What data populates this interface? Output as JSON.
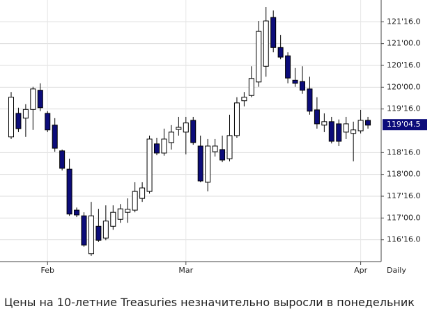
{
  "chart_data": {
    "type": "candlestick",
    "x_label": "Daily",
    "categories": [
      null,
      null,
      null,
      null,
      null,
      "Feb",
      null,
      null,
      null,
      null,
      null,
      null,
      null,
      null,
      null,
      null,
      null,
      null,
      null,
      null,
      null,
      null,
      null,
      null,
      "Mar",
      null,
      null,
      null,
      null,
      null,
      null,
      null,
      null,
      null,
      null,
      null,
      null,
      null,
      null,
      null,
      null,
      null,
      null,
      null,
      null,
      null,
      null,
      null,
      "Apr",
      null
    ],
    "open": [
      118.86,
      119.4,
      119.29,
      119.49,
      119.93,
      119.4,
      119.13,
      118.54,
      118.12,
      117.18,
      117.05,
      116.18,
      116.81,
      116.54,
      116.81,
      116.97,
      117.13,
      117.18,
      117.45,
      117.61,
      118.7,
      118.49,
      118.73,
      119.03,
      118.97,
      119.24,
      118.65,
      117.82,
      118.52,
      118.57,
      118.36,
      118.89,
      119.69,
      119.81,
      120.12,
      120.48,
      121.6,
      120.91,
      120.72,
      120.16,
      120.13,
      119.96,
      119.48,
      119.13,
      119.21,
      119.16,
      118.97,
      118.94,
      119.0,
      119.24
    ],
    "high": [
      119.89,
      119.53,
      119.61,
      120.01,
      120.09,
      119.45,
      119.29,
      118.57,
      118.36,
      117.24,
      117.13,
      117.37,
      117.21,
      117.29,
      117.29,
      117.32,
      117.45,
      117.82,
      117.82,
      118.89,
      118.84,
      119.05,
      119.13,
      119.32,
      119.32,
      119.32,
      118.89,
      118.81,
      118.81,
      118.89,
      119.37,
      119.77,
      119.89,
      120.48,
      121.52,
      121.84,
      121.76,
      121.2,
      120.8,
      120.44,
      120.48,
      120.24,
      119.77,
      119.4,
      119.32,
      119.26,
      119.32,
      119.21,
      119.48,
      119.32
    ],
    "low": [
      118.81,
      118.97,
      118.86,
      119.02,
      119.45,
      118.97,
      118.52,
      118.09,
      117.05,
      117.02,
      116.34,
      116.13,
      116.45,
      116.49,
      116.73,
      116.89,
      116.89,
      117.13,
      117.37,
      117.56,
      118.44,
      118.43,
      118.57,
      118.89,
      118.46,
      118.68,
      117.82,
      117.61,
      118.41,
      118.28,
      118.3,
      118.84,
      119.56,
      119.77,
      120.01,
      120.24,
      120.8,
      120.64,
      120.09,
      120.01,
      119.85,
      119.37,
      119.05,
      118.97,
      118.71,
      118.65,
      118.81,
      118.3,
      118.94,
      119.05
    ],
    "close": [
      119.77,
      119.05,
      119.49,
      119.96,
      119.53,
      119.02,
      118.6,
      118.14,
      117.09,
      117.07,
      116.38,
      117.05,
      116.49,
      116.93,
      117.13,
      117.21,
      117.2,
      117.61,
      117.69,
      118.81,
      118.49,
      118.81,
      118.97,
      119.08,
      119.18,
      118.73,
      117.85,
      118.65,
      118.65,
      118.33,
      118.89,
      119.64,
      119.77,
      120.2,
      121.28,
      121.52,
      120.91,
      120.69,
      120.21,
      120.09,
      119.93,
      119.45,
      119.16,
      119.21,
      118.76,
      118.76,
      119.16,
      119.02,
      119.24,
      119.13
    ],
    "up_color": "#ffffff",
    "down_color": "#0c0c7a",
    "ylim": [
      116,
      122
    ],
    "yticks": [
      {
        "value": 116.5,
        "label": "116'16.0"
      },
      {
        "value": 117,
        "label": "117'00.0"
      },
      {
        "value": 117.5,
        "label": "117'16.0"
      },
      {
        "value": 118,
        "label": "118'00.0"
      },
      {
        "value": 118.5,
        "label": "118'16.0"
      },
      {
        "value": 119.5,
        "label": "119'16.0"
      },
      {
        "value": 120,
        "label": "120'00.0"
      },
      {
        "value": 120.5,
        "label": "120'16.0"
      },
      {
        "value": 121,
        "label": "121'00.0"
      },
      {
        "value": 121.5,
        "label": "121'16.0"
      }
    ],
    "last_price": {
      "value": 119.140625,
      "label": "119'04.5"
    },
    "grid": true
  },
  "caption": "Цены на 10-летние Treasuries незначительно выросли в понедельник"
}
